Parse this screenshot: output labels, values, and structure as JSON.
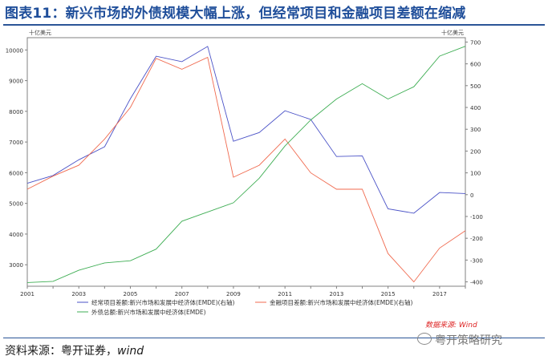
{
  "header": {
    "title": "图表11：新兴市场的外债规模大幅上涨，但经常项目和金融项目差额在缩减"
  },
  "footer": {
    "source_label": "资料来源：粤开证券，",
    "source_wind": "wind",
    "brand": "粤开策略研究"
  },
  "watermark": "数据来源: Wind",
  "chart_data": {
    "type": "line",
    "left_unit": "十亿美元",
    "right_unit": "十亿美元",
    "x_ticks": [
      "2001",
      "2003",
      "2005",
      "2007",
      "2009",
      "2011",
      "2013",
      "2015",
      "2017"
    ],
    "yleft_ticks": [
      3000,
      4000,
      5000,
      6000,
      7000,
      8000,
      9000,
      10000
    ],
    "yright_ticks": [
      -400,
      -300,
      -200,
      -100,
      0,
      100,
      200,
      300,
      400,
      500,
      600,
      700
    ],
    "xlim": [
      2001,
      2018
    ],
    "ylim_left": [
      2300,
      10400
    ],
    "ylim_right": [
      -420,
      720
    ],
    "series": [
      {
        "name": "经常项目差额:新兴市场和发展中经济体(EMDE)(右轴)",
        "axis": "right",
        "color": "#4a52c7",
        "x": [
          2001,
          2002,
          2003,
          2004,
          2005,
          2006,
          2007,
          2008,
          2009,
          2010,
          2011,
          2012,
          2013,
          2014,
          2015,
          2016,
          2017,
          2018
        ],
        "y": [
          52,
          88,
          160,
          220,
          440,
          635,
          610,
          680,
          245,
          285,
          385,
          345,
          175,
          178,
          -65,
          -85,
          10,
          5
        ]
      },
      {
        "name": "金融项目差额:新兴市场和发展中经济体(EMDE)(右轴)",
        "axis": "right",
        "color": "#f06a4f",
        "x": [
          2001,
          2002,
          2003,
          2004,
          2005,
          2006,
          2007,
          2008,
          2009,
          2010,
          2011,
          2012,
          2013,
          2014,
          2015,
          2016,
          2017,
          2018
        ],
        "y": [
          25,
          85,
          135,
          255,
          400,
          625,
          575,
          630,
          80,
          135,
          255,
          100,
          25,
          25,
          -270,
          -400,
          -245,
          -165
        ]
      },
      {
        "name": "外债总额:新兴市场和发展中经济体(EMDE)",
        "axis": "left",
        "color": "#3fae54",
        "x": [
          2001,
          2002,
          2003,
          2004,
          2005,
          2006,
          2007,
          2008,
          2009,
          2010,
          2011,
          2012,
          2013,
          2014,
          2015,
          2016,
          2017,
          2018
        ],
        "y": [
          2420,
          2460,
          2820,
          3060,
          3130,
          3510,
          4420,
          4720,
          5020,
          5820,
          6870,
          7720,
          8400,
          8900,
          8400,
          8800,
          9800,
          10120
        ]
      }
    ]
  }
}
